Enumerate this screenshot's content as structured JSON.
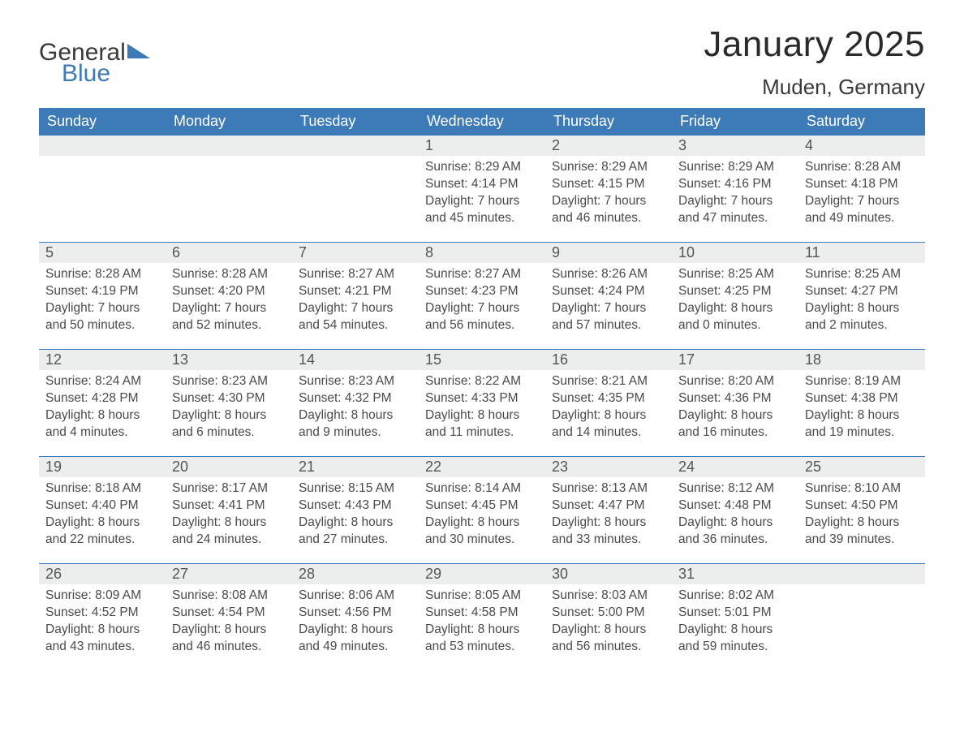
{
  "logo": {
    "text1": "General",
    "text2": "Blue"
  },
  "title": "January 2025",
  "location": "Muden, Germany",
  "colors": {
    "header_bg": "#3c7ab8",
    "header_text": "#ffffff",
    "daynum_bg": "#eceded",
    "body_text": "#4a4a4a",
    "page_bg": "#ffffff",
    "row_border": "#3c7ab8"
  },
  "day_headers": [
    "Sunday",
    "Monday",
    "Tuesday",
    "Wednesday",
    "Thursday",
    "Friday",
    "Saturday"
  ],
  "weeks": [
    [
      {
        "n": "",
        "sunrise": "",
        "sunset": "",
        "daylight": ""
      },
      {
        "n": "",
        "sunrise": "",
        "sunset": "",
        "daylight": ""
      },
      {
        "n": "",
        "sunrise": "",
        "sunset": "",
        "daylight": ""
      },
      {
        "n": "1",
        "sunrise": "Sunrise: 8:29 AM",
        "sunset": "Sunset: 4:14 PM",
        "daylight": "Daylight: 7 hours and 45 minutes."
      },
      {
        "n": "2",
        "sunrise": "Sunrise: 8:29 AM",
        "sunset": "Sunset: 4:15 PM",
        "daylight": "Daylight: 7 hours and 46 minutes."
      },
      {
        "n": "3",
        "sunrise": "Sunrise: 8:29 AM",
        "sunset": "Sunset: 4:16 PM",
        "daylight": "Daylight: 7 hours and 47 minutes."
      },
      {
        "n": "4",
        "sunrise": "Sunrise: 8:28 AM",
        "sunset": "Sunset: 4:18 PM",
        "daylight": "Daylight: 7 hours and 49 minutes."
      }
    ],
    [
      {
        "n": "5",
        "sunrise": "Sunrise: 8:28 AM",
        "sunset": "Sunset: 4:19 PM",
        "daylight": "Daylight: 7 hours and 50 minutes."
      },
      {
        "n": "6",
        "sunrise": "Sunrise: 8:28 AM",
        "sunset": "Sunset: 4:20 PM",
        "daylight": "Daylight: 7 hours and 52 minutes."
      },
      {
        "n": "7",
        "sunrise": "Sunrise: 8:27 AM",
        "sunset": "Sunset: 4:21 PM",
        "daylight": "Daylight: 7 hours and 54 minutes."
      },
      {
        "n": "8",
        "sunrise": "Sunrise: 8:27 AM",
        "sunset": "Sunset: 4:23 PM",
        "daylight": "Daylight: 7 hours and 56 minutes."
      },
      {
        "n": "9",
        "sunrise": "Sunrise: 8:26 AM",
        "sunset": "Sunset: 4:24 PM",
        "daylight": "Daylight: 7 hours and 57 minutes."
      },
      {
        "n": "10",
        "sunrise": "Sunrise: 8:25 AM",
        "sunset": "Sunset: 4:25 PM",
        "daylight": "Daylight: 8 hours and 0 minutes."
      },
      {
        "n": "11",
        "sunrise": "Sunrise: 8:25 AM",
        "sunset": "Sunset: 4:27 PM",
        "daylight": "Daylight: 8 hours and 2 minutes."
      }
    ],
    [
      {
        "n": "12",
        "sunrise": "Sunrise: 8:24 AM",
        "sunset": "Sunset: 4:28 PM",
        "daylight": "Daylight: 8 hours and 4 minutes."
      },
      {
        "n": "13",
        "sunrise": "Sunrise: 8:23 AM",
        "sunset": "Sunset: 4:30 PM",
        "daylight": "Daylight: 8 hours and 6 minutes."
      },
      {
        "n": "14",
        "sunrise": "Sunrise: 8:23 AM",
        "sunset": "Sunset: 4:32 PM",
        "daylight": "Daylight: 8 hours and 9 minutes."
      },
      {
        "n": "15",
        "sunrise": "Sunrise: 8:22 AM",
        "sunset": "Sunset: 4:33 PM",
        "daylight": "Daylight: 8 hours and 11 minutes."
      },
      {
        "n": "16",
        "sunrise": "Sunrise: 8:21 AM",
        "sunset": "Sunset: 4:35 PM",
        "daylight": "Daylight: 8 hours and 14 minutes."
      },
      {
        "n": "17",
        "sunrise": "Sunrise: 8:20 AM",
        "sunset": "Sunset: 4:36 PM",
        "daylight": "Daylight: 8 hours and 16 minutes."
      },
      {
        "n": "18",
        "sunrise": "Sunrise: 8:19 AM",
        "sunset": "Sunset: 4:38 PM",
        "daylight": "Daylight: 8 hours and 19 minutes."
      }
    ],
    [
      {
        "n": "19",
        "sunrise": "Sunrise: 8:18 AM",
        "sunset": "Sunset: 4:40 PM",
        "daylight": "Daylight: 8 hours and 22 minutes."
      },
      {
        "n": "20",
        "sunrise": "Sunrise: 8:17 AM",
        "sunset": "Sunset: 4:41 PM",
        "daylight": "Daylight: 8 hours and 24 minutes."
      },
      {
        "n": "21",
        "sunrise": "Sunrise: 8:15 AM",
        "sunset": "Sunset: 4:43 PM",
        "daylight": "Daylight: 8 hours and 27 minutes."
      },
      {
        "n": "22",
        "sunrise": "Sunrise: 8:14 AM",
        "sunset": "Sunset: 4:45 PM",
        "daylight": "Daylight: 8 hours and 30 minutes."
      },
      {
        "n": "23",
        "sunrise": "Sunrise: 8:13 AM",
        "sunset": "Sunset: 4:47 PM",
        "daylight": "Daylight: 8 hours and 33 minutes."
      },
      {
        "n": "24",
        "sunrise": "Sunrise: 8:12 AM",
        "sunset": "Sunset: 4:48 PM",
        "daylight": "Daylight: 8 hours and 36 minutes."
      },
      {
        "n": "25",
        "sunrise": "Sunrise: 8:10 AM",
        "sunset": "Sunset: 4:50 PM",
        "daylight": "Daylight: 8 hours and 39 minutes."
      }
    ],
    [
      {
        "n": "26",
        "sunrise": "Sunrise: 8:09 AM",
        "sunset": "Sunset: 4:52 PM",
        "daylight": "Daylight: 8 hours and 43 minutes."
      },
      {
        "n": "27",
        "sunrise": "Sunrise: 8:08 AM",
        "sunset": "Sunset: 4:54 PM",
        "daylight": "Daylight: 8 hours and 46 minutes."
      },
      {
        "n": "28",
        "sunrise": "Sunrise: 8:06 AM",
        "sunset": "Sunset: 4:56 PM",
        "daylight": "Daylight: 8 hours and 49 minutes."
      },
      {
        "n": "29",
        "sunrise": "Sunrise: 8:05 AM",
        "sunset": "Sunset: 4:58 PM",
        "daylight": "Daylight: 8 hours and 53 minutes."
      },
      {
        "n": "30",
        "sunrise": "Sunrise: 8:03 AM",
        "sunset": "Sunset: 5:00 PM",
        "daylight": "Daylight: 8 hours and 56 minutes."
      },
      {
        "n": "31",
        "sunrise": "Sunrise: 8:02 AM",
        "sunset": "Sunset: 5:01 PM",
        "daylight": "Daylight: 8 hours and 59 minutes."
      },
      {
        "n": "",
        "sunrise": "",
        "sunset": "",
        "daylight": ""
      }
    ]
  ]
}
